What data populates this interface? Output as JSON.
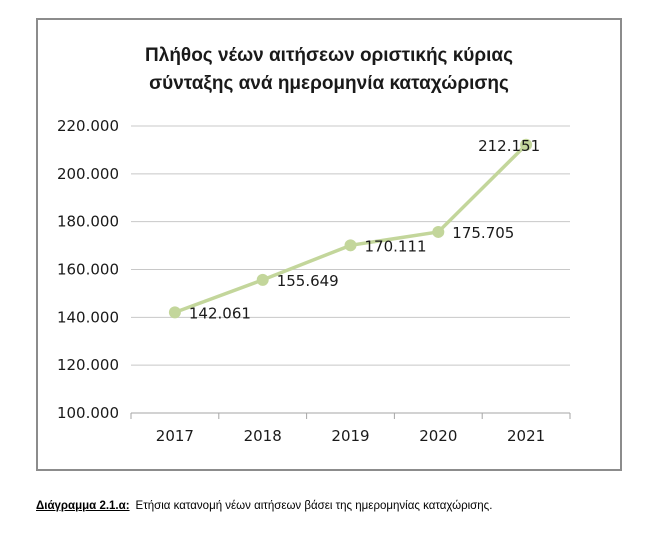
{
  "chart_data": {
    "type": "line",
    "title": [
      "Πλήθος νέων αιτήσεων οριστικής κύριας",
      "σύνταξης ανά ημερομηνία καταχώρισης"
    ],
    "categories": [
      "2017",
      "2018",
      "2019",
      "2020",
      "2021"
    ],
    "series": [
      {
        "values": [
          142061,
          155649,
          170111,
          175705,
          212151
        ],
        "labels": [
          "142.061",
          "155.649",
          "170.111",
          "175.705",
          "212.151"
        ],
        "color": "#c3d69b"
      }
    ],
    "ylim": [
      100000,
      220000
    ],
    "yticks": [
      100000,
      120000,
      140000,
      160000,
      180000,
      200000,
      220000
    ],
    "ytick_labels": [
      "100.000",
      "120.000",
      "140.000",
      "160.000",
      "180.000",
      "200.000",
      "220.000"
    ],
    "grid": true,
    "legend": "none"
  },
  "caption": {
    "label": "Διάγραμμα 2.1.α:",
    "text": "Ετήσια κατανομή νέων αιτήσεων βάσει της ημερομηνίας καταχώρισης."
  }
}
